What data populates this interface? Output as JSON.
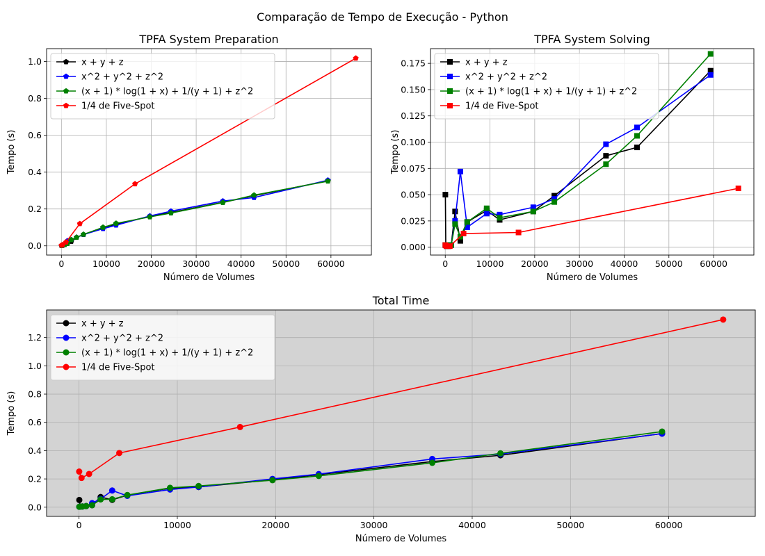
{
  "figure": {
    "suptitle": "Comparação de Tempo de Execução - Python"
  },
  "chart_data": [
    {
      "type": "line",
      "marker": "pentagon",
      "title": "TPFA System Preparation",
      "xlabel": "Número de Volumes",
      "ylabel": "Tempo (s)",
      "xlim": [
        -3300,
        69000
      ],
      "ylim": [
        -0.05,
        1.07
      ],
      "xticks": [
        0,
        10000,
        20000,
        30000,
        40000,
        50000,
        60000
      ],
      "yticks": [
        0.0,
        0.2,
        0.4,
        0.6,
        0.8,
        1.0
      ],
      "xtick_labels": [
        "0",
        "10000",
        "20000",
        "30000",
        "40000",
        "50000",
        "60000"
      ],
      "ytick_labels": [
        "0.0",
        "0.2",
        "0.4",
        "0.6",
        "0.8",
        "1.0"
      ],
      "grid": true,
      "background": "#ffffff",
      "legend_position": "upper-left",
      "series": [
        {
          "name": "x + y + z",
          "color": "#000000",
          "x": [
            27,
            125,
            343,
            729,
            1331,
            2197,
            3375,
            4913,
            9261,
            12167,
            19683,
            24389,
            35937,
            42875,
            59319
          ],
          "y": [
            0.001,
            0.002,
            0.004,
            0.007,
            0.012,
            0.024,
            0.046,
            0.061,
            0.1,
            0.117,
            0.16,
            0.181,
            0.236,
            0.272,
            0.353
          ]
        },
        {
          "name": "x^2 + y^2 + z^2",
          "color": "#0000ff",
          "x": [
            27,
            125,
            343,
            729,
            1331,
            2197,
            3375,
            4913,
            9261,
            12167,
            19683,
            24389,
            35937,
            42875,
            59319
          ],
          "y": [
            0.001,
            0.002,
            0.004,
            0.007,
            0.027,
            0.033,
            0.046,
            0.061,
            0.093,
            0.112,
            0.162,
            0.188,
            0.243,
            0.262,
            0.356
          ]
        },
        {
          "name": "(x + 1) * log(1 + x) + 1/(y + 1) + z^2",
          "color": "#008000",
          "x": [
            27,
            125,
            343,
            729,
            1331,
            2197,
            3375,
            4913,
            9261,
            12167,
            19683,
            24389,
            35937,
            42875,
            59319
          ],
          "y": [
            0.001,
            0.002,
            0.004,
            0.007,
            0.012,
            0.033,
            0.046,
            0.062,
            0.1,
            0.122,
            0.157,
            0.178,
            0.235,
            0.275,
            0.351
          ]
        },
        {
          "name": "1/4 de Five-Spot",
          "color": "#ff0000",
          "x": [
            16,
            256,
            1024,
            4096,
            16384,
            65536
          ],
          "y": [
            0.003,
            0.006,
            0.02,
            0.12,
            0.336,
            1.018
          ]
        }
      ]
    },
    {
      "type": "line",
      "marker": "square",
      "title": "TPFA System Solving",
      "xlabel": "Número de Volumes",
      "ylabel": "Tempo (s)",
      "xlim": [
        -3300,
        69000
      ],
      "ylim": [
        -0.0075,
        0.189
      ],
      "xticks": [
        0,
        10000,
        20000,
        30000,
        40000,
        50000,
        60000
      ],
      "yticks": [
        0.0,
        0.025,
        0.05,
        0.075,
        0.1,
        0.125,
        0.15,
        0.175
      ],
      "xtick_labels": [
        "0",
        "10000",
        "20000",
        "30000",
        "40000",
        "50000",
        "60000"
      ],
      "ytick_labels": [
        "0.000",
        "0.025",
        "0.050",
        "0.075",
        "0.100",
        "0.125",
        "0.150",
        "0.175"
      ],
      "grid": true,
      "background": "#ffffff",
      "legend_position": "upper-left",
      "series": [
        {
          "name": "x + y + z",
          "color": "#000000",
          "x": [
            27,
            125,
            343,
            729,
            1331,
            2197,
            3375,
            4913,
            9261,
            12167,
            19683,
            24389,
            35937,
            42875,
            59319
          ],
          "y": [
            0.05,
            0.002,
            0.001,
            0.001,
            0.002,
            0.034,
            0.006,
            0.024,
            0.035,
            0.026,
            0.034,
            0.049,
            0.087,
            0.095,
            0.168
          ]
        },
        {
          "name": "x^2 + y^2 + z^2",
          "color": "#0000ff",
          "x": [
            27,
            125,
            343,
            729,
            1331,
            2197,
            3375,
            4913,
            9261,
            12167,
            19683,
            24389,
            35937,
            42875,
            59319
          ],
          "y": [
            0.002,
            0.002,
            0.001,
            0.001,
            0.002,
            0.025,
            0.072,
            0.019,
            0.032,
            0.031,
            0.038,
            0.046,
            0.098,
            0.114,
            0.164
          ]
        },
        {
          "name": "(x + 1) * log(1 + x) + 1/(y + 1) + z^2",
          "color": "#008000",
          "x": [
            27,
            125,
            343,
            729,
            1331,
            2197,
            3375,
            4913,
            9261,
            12167,
            19683,
            24389,
            35937,
            42875,
            59319
          ],
          "y": [
            0.002,
            0.002,
            0.001,
            0.001,
            0.002,
            0.022,
            0.01,
            0.024,
            0.037,
            0.028,
            0.034,
            0.043,
            0.079,
            0.106,
            0.184
          ]
        },
        {
          "name": "1/4 de Five-Spot",
          "color": "#ff0000",
          "x": [
            16,
            256,
            1024,
            4096,
            16384,
            65536
          ],
          "y": [
            0.002,
            0.001,
            0.001,
            0.013,
            0.014,
            0.056
          ]
        }
      ]
    },
    {
      "type": "line",
      "marker": "circle",
      "title": "Total Time",
      "xlabel": "Número de Volumes",
      "ylabel": "Tempo (s)",
      "xlim": [
        -3300,
        68800
      ],
      "ylim": [
        -0.065,
        1.395
      ],
      "xticks": [
        0,
        10000,
        20000,
        30000,
        40000,
        50000,
        60000
      ],
      "yticks": [
        0.0,
        0.2,
        0.4,
        0.6,
        0.8,
        1.0,
        1.2
      ],
      "xtick_labels": [
        "0",
        "10000",
        "20000",
        "30000",
        "40000",
        "50000",
        "60000"
      ],
      "ytick_labels": [
        "0.0",
        "0.2",
        "0.4",
        "0.6",
        "0.8",
        "1.0",
        "1.2"
      ],
      "grid": true,
      "background": "#d3d3d3",
      "legend_position": "upper-left",
      "series": [
        {
          "name": "x + y + z",
          "color": "#000000",
          "x": [
            27,
            125,
            343,
            729,
            1331,
            2197,
            3375,
            4913,
            9261,
            12167,
            19683,
            24389,
            35937,
            42875,
            59319
          ],
          "y": [
            0.051,
            0.004,
            0.005,
            0.008,
            0.014,
            0.072,
            0.052,
            0.085,
            0.135,
            0.143,
            0.194,
            0.23,
            0.323,
            0.367,
            0.521
          ]
        },
        {
          "name": "x^2 + y^2 + z^2",
          "color": "#0000ff",
          "x": [
            27,
            125,
            343,
            729,
            1331,
            2197,
            3375,
            4913,
            9261,
            12167,
            19683,
            24389,
            35937,
            42875,
            59319
          ],
          "y": [
            0.003,
            0.004,
            0.005,
            0.008,
            0.029,
            0.058,
            0.118,
            0.08,
            0.125,
            0.143,
            0.2,
            0.234,
            0.341,
            0.376,
            0.52
          ]
        },
        {
          "name": "(x + 1) * log(1 + x) + 1/(y + 1) + z^2",
          "color": "#008000",
          "x": [
            27,
            125,
            343,
            729,
            1331,
            2197,
            3375,
            4913,
            9261,
            12167,
            19683,
            24389,
            35937,
            42875,
            59319
          ],
          "y": [
            0.003,
            0.004,
            0.005,
            0.008,
            0.014,
            0.055,
            0.056,
            0.086,
            0.137,
            0.15,
            0.191,
            0.221,
            0.314,
            0.381,
            0.535
          ]
        },
        {
          "name": "1/4 de Five-Spot",
          "color": "#ff0000",
          "x": [
            16,
            256,
            1024,
            4096,
            16384,
            65536
          ],
          "y": [
            0.252,
            0.207,
            0.235,
            0.383,
            0.567,
            1.327
          ]
        }
      ]
    }
  ]
}
